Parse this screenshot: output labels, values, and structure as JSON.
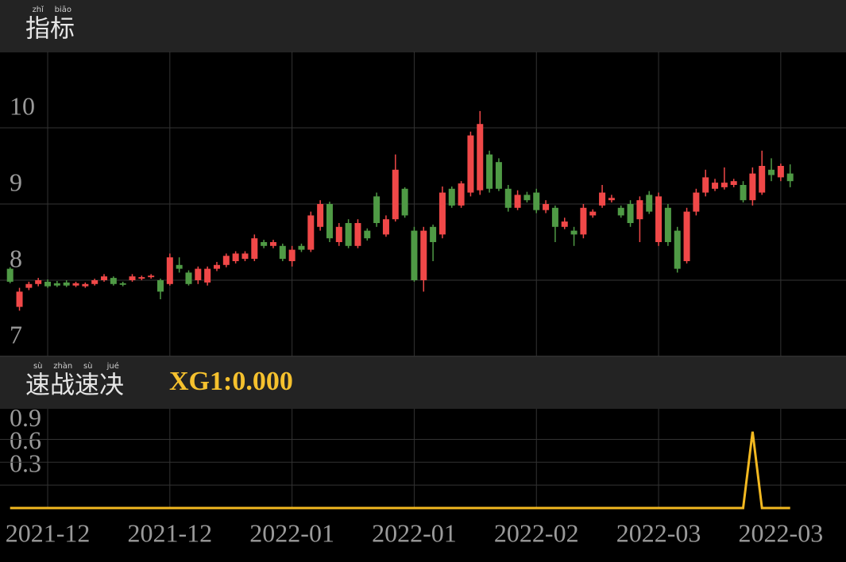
{
  "chart_data": [
    {
      "type": "candlestick",
      "title": "指标",
      "title_pinyin": [
        "zhǐ",
        "biāo"
      ],
      "up_color": "#f04848",
      "down_color": "#4f9a45",
      "grid": true,
      "ylim": [
        7,
        11
      ],
      "yticks": [
        7,
        8,
        9,
        10
      ],
      "open": [
        8.15,
        7.65,
        7.9,
        7.95,
        7.98,
        7.96,
        7.97,
        7.93,
        7.92,
        7.95,
        8.0,
        8.03,
        7.96,
        8.0,
        8.02,
        8.04,
        8.0,
        7.95,
        8.2,
        8.1,
        8.0,
        7.97,
        8.15,
        8.2,
        8.25,
        8.28,
        8.28,
        8.5,
        8.45,
        8.45,
        8.25,
        8.45,
        8.4,
        8.7,
        9.0,
        8.5,
        8.75,
        8.45,
        8.65,
        9.1,
        8.6,
        8.8,
        9.2,
        8.65,
        8.0,
        8.7,
        8.6,
        9.2,
        8.98,
        9.15,
        9.18,
        9.65,
        9.55,
        9.2,
        8.95,
        9.12,
        9.15,
        8.92,
        8.95,
        8.7,
        8.65,
        8.6,
        8.85,
        8.98,
        9.05,
        8.95,
        9.0,
        8.8,
        9.12,
        8.5,
        8.95,
        8.65,
        8.25,
        8.9,
        9.15,
        9.2,
        9.22,
        9.25,
        9.25,
        9.05,
        9.15,
        9.45,
        9.35,
        9.4
      ],
      "high": [
        8.17,
        7.9,
        7.98,
        8.03,
        8.01,
        7.99,
        8.0,
        7.98,
        7.97,
        8.02,
        8.08,
        8.05,
        7.98,
        8.08,
        8.06,
        8.08,
        8.02,
        8.35,
        8.3,
        8.13,
        8.18,
        8.18,
        8.24,
        8.35,
        8.38,
        8.38,
        8.6,
        8.53,
        8.53,
        8.48,
        8.45,
        8.48,
        8.9,
        9.05,
        9.03,
        8.75,
        8.8,
        8.8,
        8.68,
        9.15,
        8.85,
        9.65,
        9.22,
        8.7,
        8.7,
        8.73,
        9.23,
        9.23,
        9.3,
        9.95,
        10.22,
        9.7,
        9.6,
        9.25,
        9.18,
        9.16,
        9.2,
        9.05,
        8.98,
        8.82,
        8.7,
        9.0,
        8.93,
        9.25,
        9.12,
        8.98,
        9.05,
        9.1,
        9.17,
        9.15,
        9.0,
        8.7,
        8.95,
        9.2,
        9.45,
        9.33,
        9.48,
        9.33,
        9.3,
        9.48,
        9.7,
        9.6,
        9.53,
        9.52
      ],
      "low": [
        7.96,
        7.6,
        7.87,
        7.92,
        7.9,
        7.91,
        7.91,
        7.91,
        7.9,
        7.93,
        7.98,
        7.93,
        7.92,
        7.98,
        8.0,
        8.02,
        7.75,
        7.93,
        8.1,
        7.93,
        7.95,
        7.93,
        8.12,
        8.17,
        8.22,
        8.25,
        8.25,
        8.42,
        8.42,
        8.25,
        8.18,
        8.37,
        8.37,
        8.65,
        8.5,
        8.45,
        8.42,
        8.42,
        8.52,
        8.7,
        8.57,
        8.77,
        8.82,
        7.98,
        7.85,
        8.25,
        8.55,
        8.95,
        8.95,
        9.1,
        9.12,
        9.15,
        9.17,
        8.9,
        8.92,
        9.02,
        8.88,
        8.88,
        8.5,
        8.67,
        8.45,
        8.55,
        8.82,
        8.95,
        9.02,
        8.82,
        8.7,
        8.5,
        8.87,
        8.45,
        8.45,
        8.1,
        8.22,
        8.85,
        9.1,
        9.17,
        9.19,
        9.22,
        9.02,
        8.98,
        9.12,
        9.3,
        9.3,
        9.22
      ],
      "close": [
        7.98,
        7.85,
        7.95,
        8.0,
        7.92,
        7.93,
        7.93,
        7.96,
        7.95,
        8.0,
        8.05,
        7.95,
        7.94,
        8.05,
        8.04,
        8.06,
        7.85,
        8.3,
        8.15,
        7.95,
        8.15,
        8.15,
        8.2,
        8.32,
        8.35,
        8.35,
        8.55,
        8.45,
        8.5,
        8.28,
        8.4,
        8.4,
        8.85,
        9.0,
        8.55,
        8.7,
        8.45,
        8.75,
        8.55,
        8.75,
        8.8,
        9.45,
        8.85,
        8.0,
        8.65,
        8.5,
        9.15,
        8.98,
        9.27,
        9.9,
        10.05,
        9.2,
        9.2,
        8.95,
        9.12,
        9.05,
        8.92,
        9.0,
        8.7,
        8.77,
        8.6,
        8.95,
        8.9,
        9.15,
        9.08,
        8.85,
        8.75,
        9.05,
        8.9,
        9.1,
        8.5,
        8.15,
        8.9,
        9.15,
        9.35,
        9.28,
        9.28,
        9.3,
        9.05,
        9.4,
        9.5,
        9.38,
        9.5,
        9.3
      ]
    },
    {
      "type": "line",
      "title": "速战速决",
      "title_pinyin": [
        "sù",
        "zhàn",
        "sù",
        "jué"
      ],
      "readout": "XG1:0.000",
      "color": "#f2b820",
      "grid": true,
      "ylim": [
        0,
        1.3
      ],
      "yticks": [
        0.3,
        0.6,
        0.9
      ],
      "categories": [
        null,
        null,
        null,
        null,
        "2021-12",
        null,
        null,
        null,
        null,
        null,
        null,
        null,
        null,
        null,
        null,
        null,
        null,
        "2021-12",
        null,
        null,
        null,
        null,
        null,
        null,
        null,
        null,
        null,
        null,
        null,
        null,
        "2022-01",
        null,
        null,
        null,
        null,
        null,
        null,
        null,
        null,
        null,
        null,
        null,
        null,
        "2022-01",
        null,
        null,
        null,
        null,
        null,
        null,
        null,
        null,
        null,
        null,
        null,
        null,
        "2022-02",
        null,
        null,
        null,
        null,
        null,
        null,
        null,
        null,
        null,
        null,
        null,
        null,
        "2022-03",
        null,
        null,
        null,
        null,
        null,
        null,
        null,
        null,
        null,
        null,
        null,
        null,
        "2022-03",
        null
      ],
      "values": [
        0,
        0,
        0,
        0,
        0,
        0,
        0,
        0,
        0,
        0,
        0,
        0,
        0,
        0,
        0,
        0,
        0,
        0,
        0,
        0,
        0,
        0,
        0,
        0,
        0,
        0,
        0,
        0,
        0,
        0,
        0,
        0,
        0,
        0,
        0,
        0,
        0,
        0,
        0,
        0,
        0,
        0,
        0,
        0,
        0,
        0,
        0,
        0,
        0,
        0,
        0,
        0,
        0,
        0,
        0,
        0,
        0,
        0,
        0,
        0,
        0,
        0,
        0,
        0,
        0,
        0,
        0,
        0,
        0,
        0,
        0,
        0,
        0,
        0,
        0,
        0,
        0,
        0,
        0,
        1,
        0,
        0,
        0,
        0
      ]
    }
  ]
}
